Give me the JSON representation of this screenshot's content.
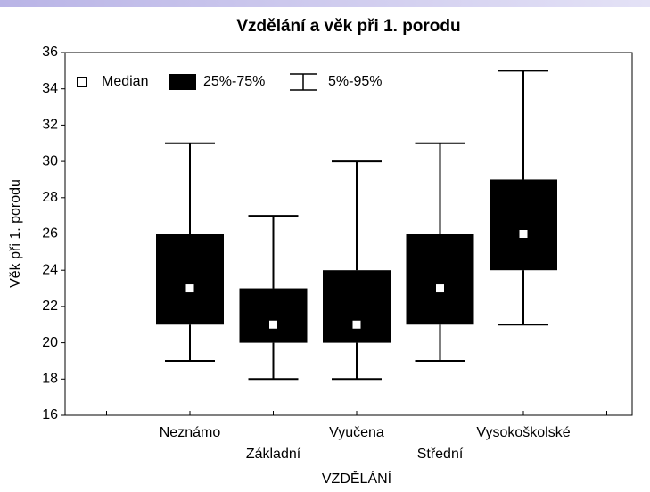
{
  "chart_data": {
    "type": "box",
    "title": "Vzdělání a věk při 1. porodu",
    "xlabel": "VZDĚLÁNÍ",
    "ylabel": "Věk při 1. porodu",
    "categories": [
      "Neznámo",
      "Základní",
      "Vyučena",
      "Střední",
      "Vysokoškolské"
    ],
    "p5": [
      19,
      18,
      18,
      19,
      21
    ],
    "q1": [
      21,
      20,
      20,
      21,
      24
    ],
    "median": [
      23,
      21,
      21,
      23,
      26
    ],
    "q3": [
      26,
      23,
      24,
      26,
      29
    ],
    "p95": [
      31,
      27,
      30,
      31,
      35
    ],
    "legend": [
      "Median",
      "25%-75%",
      "5%-95%"
    ],
    "color": "#000000",
    "median_color": "#ffffff",
    "ylim": [
      16,
      36
    ],
    "yticks": [
      16,
      18,
      20,
      22,
      24,
      26,
      28,
      30,
      32,
      34,
      36
    ],
    "legend_position": "upper left"
  }
}
